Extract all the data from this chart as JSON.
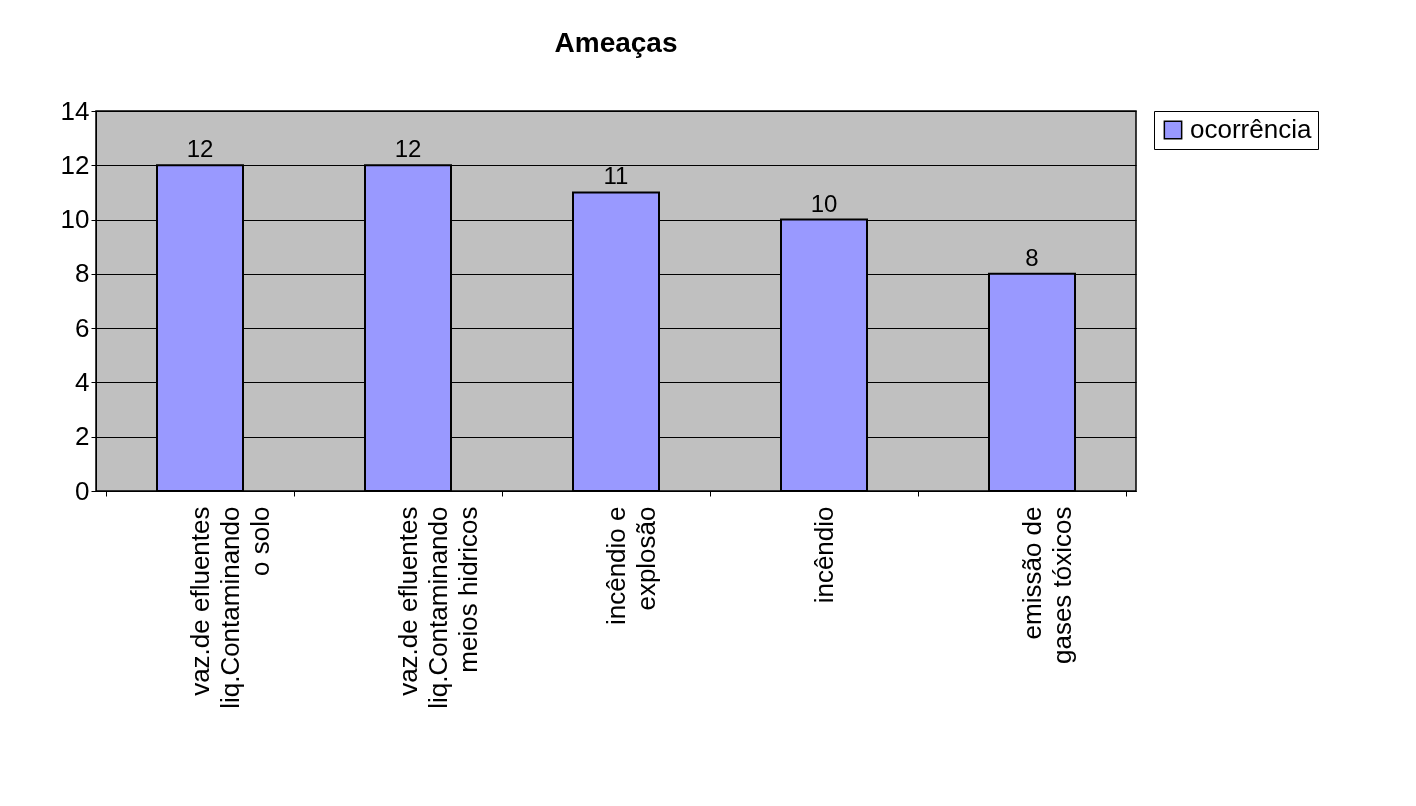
{
  "chart_data": {
    "type": "bar",
    "title": "Ameaças",
    "categories": [
      "vaz.de efluentes\nliq.Contaminando\no solo",
      "vaz.de efluentes\nliq.Contaminando\nmeios hidricos",
      "incêndio e\nexplosão",
      "incêndio",
      "emissão de\ngases tóxicos"
    ],
    "series": [
      {
        "name": "ocorrência",
        "color": "#9999ff",
        "values": [
          12,
          12,
          11,
          10,
          8
        ]
      }
    ],
    "ylim": [
      0,
      14
    ],
    "yticks": [
      0,
      2,
      4,
      6,
      8,
      10,
      12,
      14
    ],
    "grid": "y",
    "legend": "right",
    "data_labels": true
  }
}
